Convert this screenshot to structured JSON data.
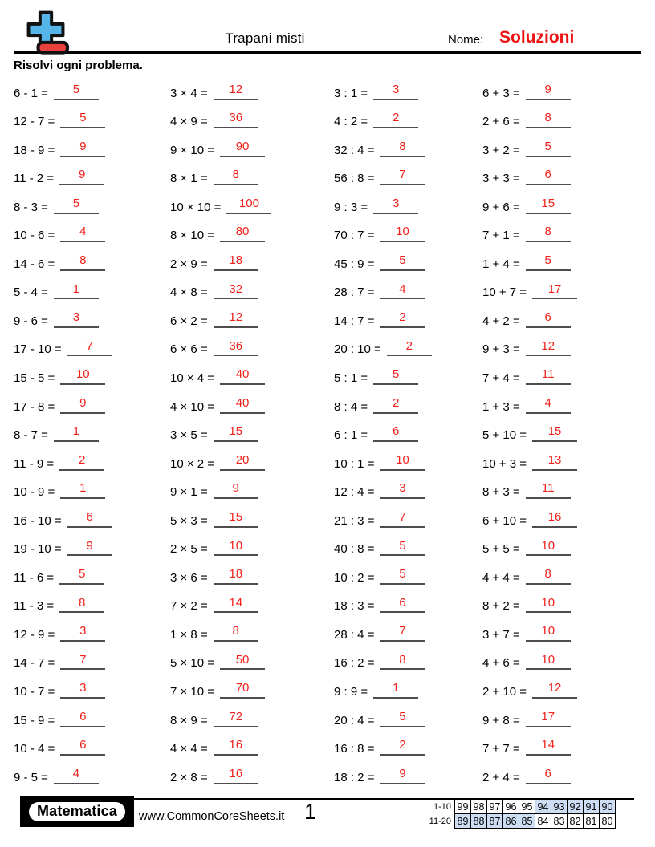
{
  "header": {
    "title": "Trapani misti",
    "nome_label": "Nome:",
    "solutions_text": "Soluzioni",
    "logo": "plus-minus-icon"
  },
  "instructions": "Risolvi ogni problema.",
  "colors": {
    "answer_red": "#f2211а-FIX",
    "solutions_red": "#ee1111",
    "logo_blue": "#56b5e8",
    "logo_red": "#e9423e",
    "table_highlight_blue": "#cdddf3",
    "underline_gray": "#4d4d4d"
  },
  "problems": {
    "columns": [
      {
        "type": "subtraction",
        "items": [
          {
            "q": "6 - 1 =",
            "a": "5"
          },
          {
            "q": "12 - 7 =",
            "a": "5"
          },
          {
            "q": "18 - 9 =",
            "a": "9"
          },
          {
            "q": "11 - 2 =",
            "a": "9"
          },
          {
            "q": "8 - 3 =",
            "a": "5"
          },
          {
            "q": "10 - 6 =",
            "a": "4"
          },
          {
            "q": "14 - 6 =",
            "a": "8"
          },
          {
            "q": "5 - 4 =",
            "a": "1"
          },
          {
            "q": "9 - 6 =",
            "a": "3"
          },
          {
            "q": "17 - 10 =",
            "a": "7"
          },
          {
            "q": "15 - 5 =",
            "a": "10"
          },
          {
            "q": "17 - 8 =",
            "a": "9"
          },
          {
            "q": "8 - 7 =",
            "a": "1"
          },
          {
            "q": "11 - 9 =",
            "a": "2"
          },
          {
            "q": "10 - 9 =",
            "a": "1"
          },
          {
            "q": "16 - 10 =",
            "a": "6"
          },
          {
            "q": "19 - 10 =",
            "a": "9"
          },
          {
            "q": "11 - 6 =",
            "a": "5"
          },
          {
            "q": "11 - 3 =",
            "a": "8"
          },
          {
            "q": "12 - 9 =",
            "a": "3"
          },
          {
            "q": "14 - 7 =",
            "a": "7"
          },
          {
            "q": "10 - 7 =",
            "a": "3"
          },
          {
            "q": "15 - 9 =",
            "a": "6"
          },
          {
            "q": "10 - 4 =",
            "a": "6"
          },
          {
            "q": "9 - 5 =",
            "a": "4"
          }
        ]
      },
      {
        "type": "multiplication",
        "items": [
          {
            "q": "3 × 4 =",
            "a": "12"
          },
          {
            "q": "4 × 9 =",
            "a": "36"
          },
          {
            "q": "9 × 10 =",
            "a": "90"
          },
          {
            "q": "8 × 1 =",
            "a": "8"
          },
          {
            "q": "10 × 10 =",
            "a": "100"
          },
          {
            "q": "8 × 10 =",
            "a": "80"
          },
          {
            "q": "2 × 9 =",
            "a": "18"
          },
          {
            "q": "4 × 8 =",
            "a": "32"
          },
          {
            "q": "6 × 2 =",
            "a": "12"
          },
          {
            "q": "6 × 6 =",
            "a": "36"
          },
          {
            "q": "10 × 4 =",
            "a": "40"
          },
          {
            "q": "4 × 10 =",
            "a": "40"
          },
          {
            "q": "3 × 5 =",
            "a": "15"
          },
          {
            "q": "10 × 2 =",
            "a": "20"
          },
          {
            "q": "9 × 1 =",
            "a": "9"
          },
          {
            "q": "5 × 3 =",
            "a": "15"
          },
          {
            "q": "2 × 5 =",
            "a": "10"
          },
          {
            "q": "3 × 6 =",
            "a": "18"
          },
          {
            "q": "7 × 2 =",
            "a": "14"
          },
          {
            "q": "1 × 8 =",
            "a": "8"
          },
          {
            "q": "5 × 10 =",
            "a": "50"
          },
          {
            "q": "7 × 10 =",
            "a": "70"
          },
          {
            "q": "8 × 9 =",
            "a": "72"
          },
          {
            "q": "4 × 4 =",
            "a": "16"
          },
          {
            "q": "2 × 8 =",
            "a": "16"
          }
        ]
      },
      {
        "type": "division",
        "items": [
          {
            "q": "3 : 1 =",
            "a": "3"
          },
          {
            "q": "4 : 2 =",
            "a": "2"
          },
          {
            "q": "32 : 4 =",
            "a": "8"
          },
          {
            "q": "56 : 8 =",
            "a": "7"
          },
          {
            "q": "9 : 3 =",
            "a": "3"
          },
          {
            "q": "70 : 7 =",
            "a": "10"
          },
          {
            "q": "45 : 9 =",
            "a": "5"
          },
          {
            "q": "28 : 7 =",
            "a": "4"
          },
          {
            "q": "14 : 7 =",
            "a": "2"
          },
          {
            "q": "20 : 10 =",
            "a": "2"
          },
          {
            "q": "5 : 1 =",
            "a": "5"
          },
          {
            "q": "8 : 4 =",
            "a": "2"
          },
          {
            "q": "6 : 1 =",
            "a": "6"
          },
          {
            "q": "10 : 1 =",
            "a": "10"
          },
          {
            "q": "12 : 4 =",
            "a": "3"
          },
          {
            "q": "21 : 3 =",
            "a": "7"
          },
          {
            "q": "40 : 8 =",
            "a": "5"
          },
          {
            "q": "10 : 2 =",
            "a": "5"
          },
          {
            "q": "18 : 3 =",
            "a": "6"
          },
          {
            "q": "28 : 4 =",
            "a": "7"
          },
          {
            "q": "16 : 2 =",
            "a": "8"
          },
          {
            "q": "9 : 9 =",
            "a": "1"
          },
          {
            "q": "20 : 4 =",
            "a": "5"
          },
          {
            "q": "16 : 8 =",
            "a": "2"
          },
          {
            "q": "18 : 2 =",
            "a": "9"
          }
        ]
      },
      {
        "type": "addition",
        "items": [
          {
            "q": "6 + 3 =",
            "a": "9"
          },
          {
            "q": "2 + 6 =",
            "a": "8"
          },
          {
            "q": "3 + 2 =",
            "a": "5"
          },
          {
            "q": "3 + 3 =",
            "a": "6"
          },
          {
            "q": "9 + 6 =",
            "a": "15"
          },
          {
            "q": "7 + 1 =",
            "a": "8"
          },
          {
            "q": "1 + 4 =",
            "a": "5"
          },
          {
            "q": "10 + 7 =",
            "a": "17"
          },
          {
            "q": "4 + 2 =",
            "a": "6"
          },
          {
            "q": "9 + 3 =",
            "a": "12"
          },
          {
            "q": "7 + 4 =",
            "a": "11"
          },
          {
            "q": "1 + 3 =",
            "a": "4"
          },
          {
            "q": "5 + 10 =",
            "a": "15"
          },
          {
            "q": "10 + 3 =",
            "a": "13"
          },
          {
            "q": "8 + 3 =",
            "a": "11"
          },
          {
            "q": "6 + 10 =",
            "a": "16"
          },
          {
            "q": "5 + 5 =",
            "a": "10"
          },
          {
            "q": "4 + 4 =",
            "a": "8"
          },
          {
            "q": "8 + 2 =",
            "a": "10"
          },
          {
            "q": "3 + 7 =",
            "a": "10"
          },
          {
            "q": "4 + 6 =",
            "a": "10"
          },
          {
            "q": "2 + 10 =",
            "a": "12"
          },
          {
            "q": "9 + 8 =",
            "a": "17"
          },
          {
            "q": "7 + 7 =",
            "a": "14"
          },
          {
            "q": "2 + 4 =",
            "a": "6"
          }
        ]
      }
    ]
  },
  "footer": {
    "brand": "Matematica",
    "website": "www.CommonCoreSheets.it",
    "page_number": "1",
    "score_table": {
      "rows": [
        {
          "label": "1-10",
          "cells": [
            {
              "v": "99",
              "hl": false
            },
            {
              "v": "98",
              "hl": false
            },
            {
              "v": "97",
              "hl": false
            },
            {
              "v": "96",
              "hl": false
            },
            {
              "v": "95",
              "hl": false
            },
            {
              "v": "94",
              "hl": true
            },
            {
              "v": "93",
              "hl": true
            },
            {
              "v": "92",
              "hl": true
            },
            {
              "v": "91",
              "hl": true
            },
            {
              "v": "90",
              "hl": true
            }
          ]
        },
        {
          "label": "11-20",
          "cells": [
            {
              "v": "89",
              "hl": true
            },
            {
              "v": "88",
              "hl": true
            },
            {
              "v": "87",
              "hl": true
            },
            {
              "v": "86",
              "hl": true
            },
            {
              "v": "85",
              "hl": true
            },
            {
              "v": "84",
              "hl": false
            },
            {
              "v": "83",
              "hl": false
            },
            {
              "v": "82",
              "hl": false
            },
            {
              "v": "81",
              "hl": false
            },
            {
              "v": "80",
              "hl": false
            }
          ]
        }
      ]
    }
  }
}
